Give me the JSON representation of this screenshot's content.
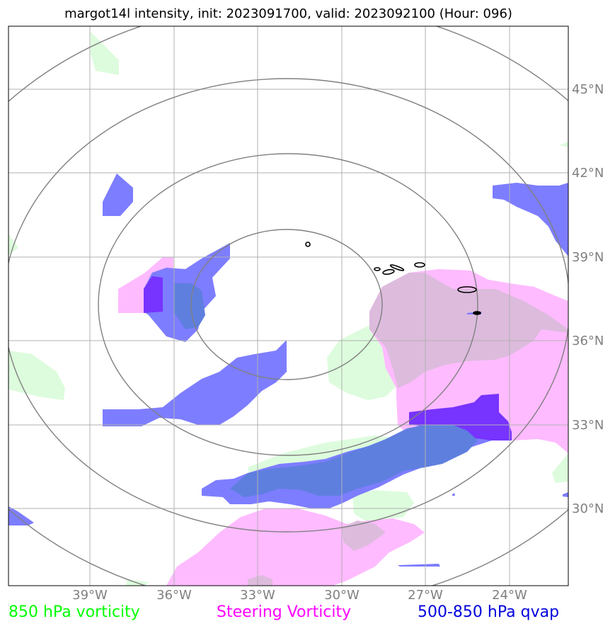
{
  "title": "margot14l intensity, init: 2023091700, valid: 2023092100 (Hour: 096)",
  "lon_ticks": [
    "39°W",
    "36°W",
    "33°W",
    "30°W",
    "27°W",
    "24°W"
  ],
  "lat_ticks": [
    "45°N",
    "42°N",
    "39°N",
    "36°N",
    "33°N",
    "30°N"
  ],
  "legend": {
    "vorticity_850": {
      "label": "850 hPa vorticity",
      "color": "#00ff00"
    },
    "steering": {
      "label": "Steering Vorticity",
      "color": "#ff00ff"
    },
    "qvap": {
      "label": "500-850 hPa qvap",
      "color": "#0000dd"
    }
  },
  "colors": {
    "vorticity_fill": "#ddfcdd",
    "steering_fill": "#ffbbff",
    "qvap_fill": "#7d7dff",
    "grid": "#b0b0b0",
    "range_rings": "#808080",
    "intensity_contour": "#000000"
  }
}
